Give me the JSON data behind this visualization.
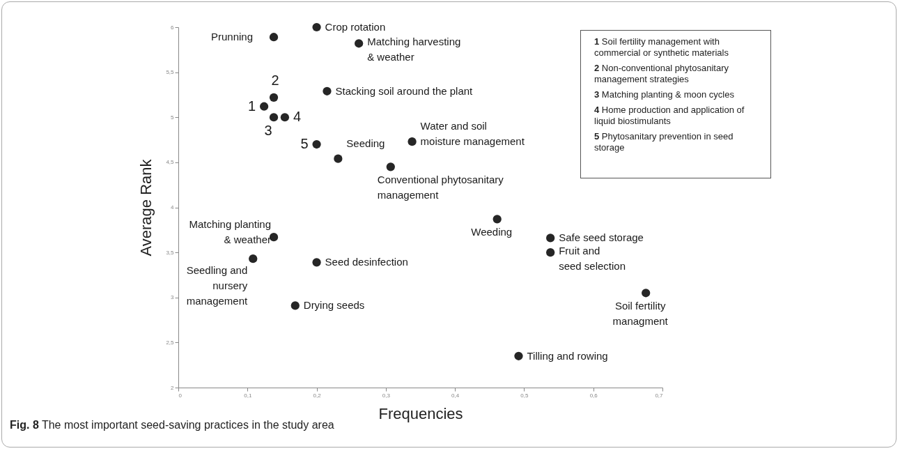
{
  "chart_data": {
    "type": "scatter",
    "xlabel": "Frequencies",
    "ylabel": "Average Rank",
    "x": [
      0.138,
      0.2,
      0.261,
      0.138,
      0.215,
      0.124,
      0.138,
      0.154,
      0.2,
      0.338,
      0.231,
      0.307,
      0.461,
      0.138,
      0.108,
      0.2,
      0.169,
      0.492,
      0.538,
      0.538,
      0.676
    ],
    "values": [
      5.89,
      6.0,
      5.82,
      5.22,
      5.29,
      5.12,
      5.0,
      5.0,
      4.7,
      4.73,
      4.54,
      4.45,
      3.87,
      3.67,
      3.43,
      3.39,
      2.91,
      2.35,
      3.66,
      3.5,
      3.05
    ],
    "color": "#262626",
    "marker": "circle",
    "xlim": [
      0,
      0.7
    ],
    "xticks": [
      0,
      {
        "value": 0.1,
        "label": "0,1"
      },
      {
        "value": 0.2,
        "label": "0,2"
      },
      {
        "value": 0.3,
        "label": "0,3"
      },
      {
        "value": 0.4,
        "label": "0,4"
      },
      {
        "value": 0.5,
        "label": "0,5"
      },
      {
        "value": 0.6,
        "label": "0,6"
      },
      {
        "value": 0.7,
        "label": "0,7"
      }
    ],
    "ylim": [
      2,
      6
    ],
    "yticks": [
      2,
      {
        "value": 2.5,
        "label": "2,5"
      },
      3,
      {
        "value": 3.5,
        "label": "3,5"
      },
      4,
      {
        "value": 4.5,
        "label": "4,5"
      },
      5,
      {
        "value": 5.5,
        "label": "5,5"
      },
      6
    ],
    "annotations": [
      {
        "text": "Prunning",
        "x": 0.138,
        "y": 5.89
      },
      {
        "text": "Crop rotation",
        "x": 0.2,
        "y": 6.0
      },
      {
        "text": "Matching harvesting\n& weather",
        "x": 0.261,
        "y": 5.82
      },
      {
        "text": "2",
        "x": 0.138,
        "y": 5.22
      },
      {
        "text": "Stacking soil around the plant",
        "x": 0.215,
        "y": 5.29
      },
      {
        "text": "1",
        "x": 0.124,
        "y": 5.12
      },
      {
        "text": "3",
        "x": 0.138,
        "y": 5.0
      },
      {
        "text": "4",
        "x": 0.154,
        "y": 5.0
      },
      {
        "text": "5",
        "x": 0.2,
        "y": 4.7
      },
      {
        "text": "Water and soil\nmoisture management",
        "x": 0.338,
        "y": 4.73
      },
      {
        "text": "Seeding",
        "x": 0.231,
        "y": 4.54
      },
      {
        "text": "Conventional phytosanitary\nmanagement",
        "x": 0.307,
        "y": 4.45
      },
      {
        "text": "Weeding",
        "x": 0.461,
        "y": 3.87
      },
      {
        "text": "Matching planting\n& weather",
        "x": 0.138,
        "y": 3.67
      },
      {
        "text": "Seedling and\nnursery\n management",
        "x": 0.108,
        "y": 3.43
      },
      {
        "text": "Seed desinfection",
        "x": 0.2,
        "y": 3.39
      },
      {
        "text": "Drying seeds",
        "x": 0.169,
        "y": 2.91
      },
      {
        "text": "Tilling and rowing",
        "x": 0.492,
        "y": 2.35
      },
      {
        "text": "Safe seed storage",
        "x": 0.538,
        "y": 3.66
      },
      {
        "text": "Fruit and\nseed selection",
        "x": 0.538,
        "y": 3.5
      },
      {
        "text": "Soil fertility\nmanagment",
        "x": 0.676,
        "y": 3.05
      },
      "1 Soil fertility management with commercial or synthetic materials",
      "2 Non-conventional phytosanitary management strategies",
      "3 Matching planting & moon cycles",
      "4 Home production and application of liquid biostimulants",
      "5 Phytosanitary prevention in seed storage",
      "Fig. 8 The most important seed-saving practices in the study area"
    ]
  }
}
